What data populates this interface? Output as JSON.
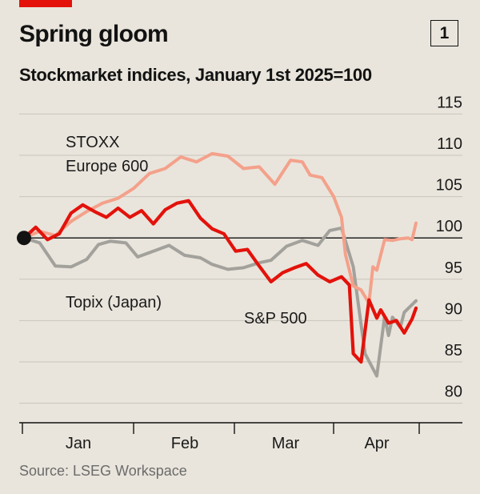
{
  "header": {
    "title": "Spring gloom",
    "chart_number": "1",
    "subtitle": "Stockmarket indices, January 1st 2025=100"
  },
  "footer": {
    "source": "Source: LSEG Workspace"
  },
  "colors": {
    "stoxx": "#f4a18b",
    "topix": "#a3a19b",
    "sp500": "#e3120b",
    "baseline": "#121212",
    "grid": "#c9c5bc"
  },
  "chart_data": {
    "type": "line",
    "title": "Spring gloom",
    "subtitle": "Stockmarket indices, January 1st 2025=100",
    "xlabel": "",
    "ylabel": "",
    "x_ticks": [
      "Jan",
      "Feb",
      "Mar",
      "Apr"
    ],
    "y_ticks": [
      80,
      85,
      90,
      95,
      100,
      105,
      110,
      115
    ],
    "ylim": [
      79,
      116
    ],
    "baseline": 100,
    "source": "Source: LSEG Workspace",
    "series": [
      {
        "name": "Topix (Japan)",
        "label": "Topix (Japan)",
        "color_key": "topix",
        "x": [
          0,
          4,
          8,
          12,
          16,
          19,
          22,
          26,
          29,
          33,
          37,
          41,
          45,
          48,
          52,
          56,
          60,
          63,
          67,
          71,
          75,
          78,
          81,
          84,
          87,
          90,
          92,
          93,
          94,
          96,
          97,
          100
        ],
        "y": [
          100,
          99.4,
          96.6,
          96.5,
          97.4,
          99.2,
          99.6,
          99.4,
          97.7,
          98.4,
          99.1,
          97.9,
          97.6,
          96.8,
          96.2,
          96.4,
          97.0,
          97.3,
          99.0,
          99.7,
          99.1,
          100.9,
          101.2,
          96.5,
          86.0,
          83.3,
          90.5,
          88.2,
          90.4,
          89.2,
          91.0,
          92.4
        ]
      },
      {
        "name": "S&P 500",
        "label": "S&P 500",
        "color_key": "sp500",
        "x": [
          0,
          3,
          6,
          9,
          12,
          15,
          18,
          21,
          24,
          27,
          30,
          33,
          36,
          39,
          42,
          45,
          48,
          51,
          54,
          57,
          60,
          63,
          66,
          69,
          72,
          75,
          78,
          81,
          83,
          84,
          86,
          88,
          90,
          91,
          93,
          95,
          97,
          99,
          100
        ],
        "y": [
          100,
          101.3,
          99.8,
          100.5,
          103.0,
          104.0,
          103.2,
          102.5,
          103.6,
          102.5,
          103.3,
          101.7,
          103.4,
          104.2,
          104.5,
          102.4,
          101.1,
          100.5,
          98.4,
          98.6,
          96.6,
          94.7,
          95.8,
          96.4,
          96.9,
          95.5,
          94.7,
          95.3,
          94.3,
          86.0,
          85.0,
          92.5,
          90.3,
          91.3,
          89.7,
          90.0,
          88.5,
          90.2,
          91.5
        ]
      },
      {
        "name": "STOXX Europe 600",
        "label_line1": "STOXX",
        "label_line2": "Europe 600",
        "color_key": "stoxx",
        "x": [
          0,
          4,
          8,
          12,
          16,
          20,
          24,
          28,
          32,
          36,
          40,
          44,
          48,
          52,
          56,
          60,
          64,
          68,
          71,
          73,
          76,
          79,
          81,
          82,
          84,
          86,
          88,
          89,
          90,
          92,
          94,
          96,
          98,
          99,
          100
        ],
        "y": [
          100,
          100.8,
          100.3,
          102.0,
          103.2,
          104.2,
          104.8,
          106.0,
          107.8,
          108.4,
          109.8,
          109.2,
          110.2,
          109.9,
          108.4,
          108.6,
          106.5,
          109.4,
          109.2,
          107.6,
          107.3,
          105.0,
          102.5,
          98.0,
          94.2,
          93.7,
          92.1,
          96.5,
          96.1,
          99.8,
          99.7,
          99.9,
          100.0,
          99.8,
          101.8
        ]
      }
    ]
  }
}
